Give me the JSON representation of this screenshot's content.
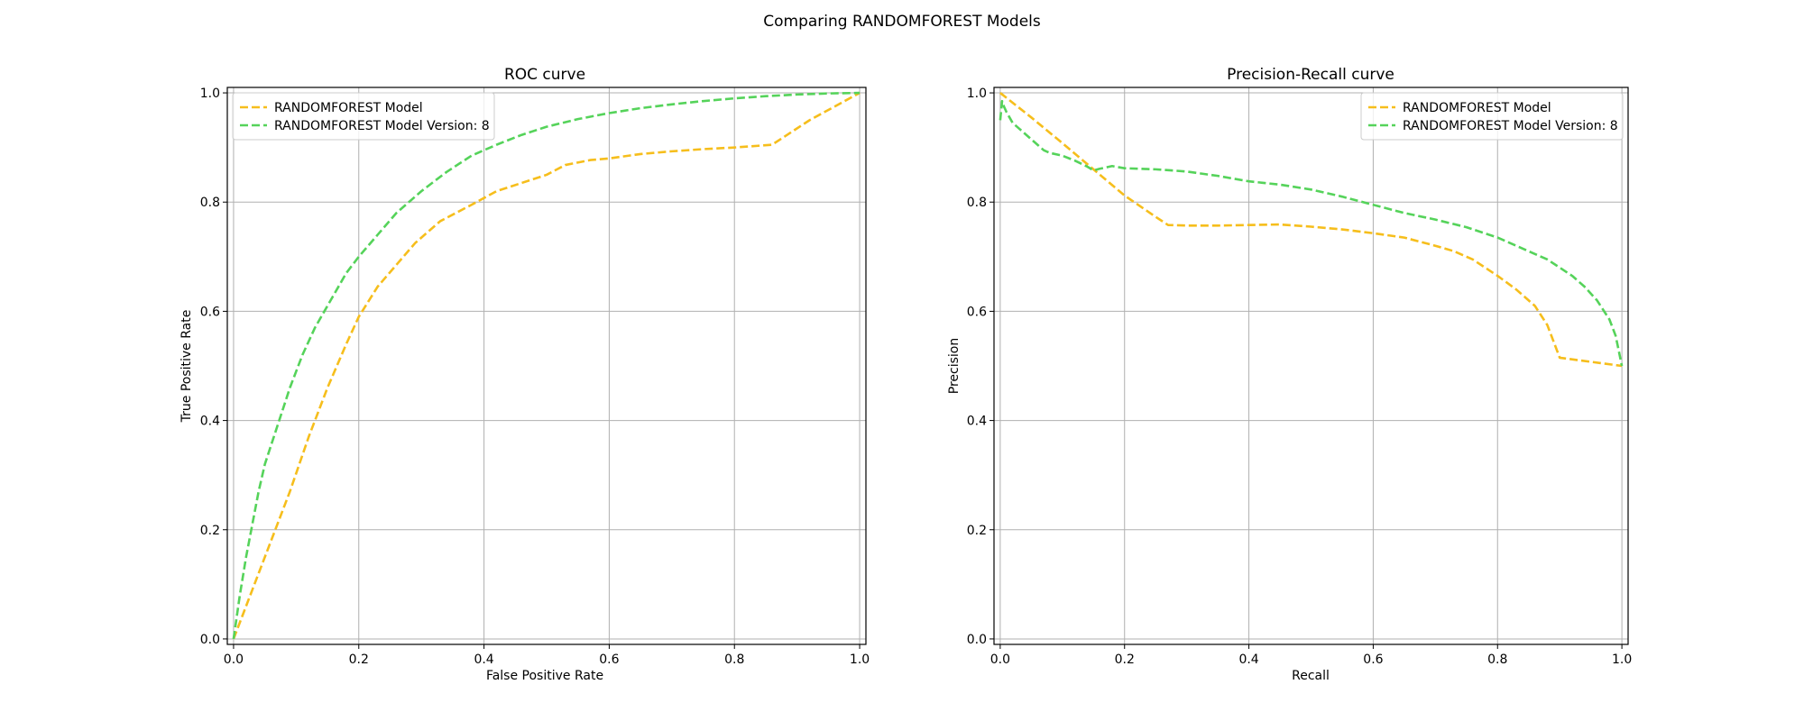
{
  "figure": {
    "title": "Comparing RANDOMFOREST Models"
  },
  "chart_data": [
    {
      "type": "line",
      "title": "ROC curve",
      "xlabel": "False Positive Rate",
      "ylabel": "True Positive Rate",
      "xlim": [
        -0.01,
        1.01
      ],
      "ylim": [
        -0.01,
        1.01
      ],
      "xticks": [
        0.0,
        0.2,
        0.4,
        0.6,
        0.8,
        1.0
      ],
      "xtick_labels": [
        "0.0",
        "0.2",
        "0.4",
        "0.6",
        "0.8",
        "1.0"
      ],
      "yticks": [
        0.0,
        0.2,
        0.4,
        0.6,
        0.8,
        1.0
      ],
      "ytick_labels": [
        "0.0",
        "0.2",
        "0.4",
        "0.6",
        "0.8",
        "1.0"
      ],
      "grid": true,
      "legend": "upper left",
      "series": [
        {
          "name": "RANDOMFOREST Model",
          "color": "#f6be1c",
          "x": [
            0.0,
            0.03,
            0.06,
            0.09,
            0.12,
            0.15,
            0.18,
            0.2,
            0.23,
            0.26,
            0.29,
            0.33,
            0.38,
            0.42,
            0.46,
            0.5,
            0.53,
            0.57,
            0.6,
            0.65,
            0.7,
            0.75,
            0.8,
            0.86,
            0.88,
            0.92,
            0.96,
            1.0
          ],
          "y": [
            0.0,
            0.09,
            0.18,
            0.27,
            0.37,
            0.46,
            0.54,
            0.59,
            0.645,
            0.685,
            0.725,
            0.765,
            0.795,
            0.82,
            0.835,
            0.85,
            0.868,
            0.877,
            0.88,
            0.888,
            0.893,
            0.897,
            0.9,
            0.905,
            0.92,
            0.95,
            0.975,
            1.0
          ]
        },
        {
          "name": "RANDOMFOREST Model Version: 8",
          "color": "#55d35a",
          "x": [
            0.0,
            0.01,
            0.02,
            0.03,
            0.04,
            0.05,
            0.07,
            0.09,
            0.11,
            0.13,
            0.15,
            0.18,
            0.2,
            0.23,
            0.26,
            0.3,
            0.34,
            0.38,
            0.42,
            0.46,
            0.5,
            0.55,
            0.6,
            0.65,
            0.7,
            0.75,
            0.8,
            0.85,
            0.9,
            0.95,
            1.0
          ],
          "y": [
            0.0,
            0.08,
            0.15,
            0.21,
            0.27,
            0.32,
            0.39,
            0.46,
            0.52,
            0.57,
            0.61,
            0.67,
            0.7,
            0.74,
            0.78,
            0.82,
            0.855,
            0.885,
            0.905,
            0.923,
            0.938,
            0.952,
            0.963,
            0.972,
            0.979,
            0.985,
            0.99,
            0.994,
            0.997,
            0.999,
            1.0
          ]
        }
      ]
    },
    {
      "type": "line",
      "title": "Precision-Recall curve",
      "xlabel": "Recall",
      "ylabel": "Precision",
      "xlim": [
        -0.01,
        1.01
      ],
      "ylim": [
        -0.01,
        1.01
      ],
      "xticks": [
        0.0,
        0.2,
        0.4,
        0.6,
        0.8,
        1.0
      ],
      "xtick_labels": [
        "0.0",
        "0.2",
        "0.4",
        "0.6",
        "0.8",
        "1.0"
      ],
      "yticks": [
        0.0,
        0.2,
        0.4,
        0.6,
        0.8,
        1.0
      ],
      "ytick_labels": [
        "0.0",
        "0.2",
        "0.4",
        "0.6",
        "0.8",
        "1.0"
      ],
      "grid": true,
      "legend": "upper right",
      "series": [
        {
          "name": "RANDOMFOREST Model",
          "color": "#f6be1c",
          "x": [
            0.0,
            0.05,
            0.1,
            0.15,
            0.2,
            0.25,
            0.27,
            0.3,
            0.35,
            0.4,
            0.45,
            0.5,
            0.55,
            0.6,
            0.65,
            0.7,
            0.73,
            0.76,
            0.8,
            0.83,
            0.86,
            0.88,
            0.9,
            1.0
          ],
          "y": [
            1.0,
            0.955,
            0.908,
            0.86,
            0.812,
            0.773,
            0.758,
            0.757,
            0.757,
            0.758,
            0.759,
            0.755,
            0.75,
            0.743,
            0.735,
            0.72,
            0.71,
            0.695,
            0.665,
            0.64,
            0.61,
            0.575,
            0.515,
            0.5
          ]
        },
        {
          "name": "RANDOMFOREST Model Version: 8",
          "color": "#55d35a",
          "x": [
            0.0,
            0.003,
            0.006,
            0.01,
            0.015,
            0.02,
            0.03,
            0.04,
            0.05,
            0.06,
            0.07,
            0.08,
            0.1,
            0.12,
            0.14,
            0.15,
            0.16,
            0.18,
            0.2,
            0.25,
            0.3,
            0.35,
            0.4,
            0.45,
            0.5,
            0.55,
            0.6,
            0.65,
            0.7,
            0.75,
            0.8,
            0.85,
            0.88,
            0.9,
            0.92,
            0.94,
            0.96,
            0.98,
            0.99,
            1.0
          ],
          "y": [
            0.95,
            0.985,
            0.975,
            0.965,
            0.955,
            0.945,
            0.935,
            0.925,
            0.915,
            0.905,
            0.895,
            0.89,
            0.885,
            0.876,
            0.865,
            0.858,
            0.861,
            0.866,
            0.862,
            0.86,
            0.856,
            0.848,
            0.838,
            0.832,
            0.823,
            0.81,
            0.795,
            0.78,
            0.768,
            0.754,
            0.735,
            0.71,
            0.695,
            0.68,
            0.665,
            0.645,
            0.62,
            0.585,
            0.555,
            0.5
          ]
        }
      ]
    }
  ]
}
